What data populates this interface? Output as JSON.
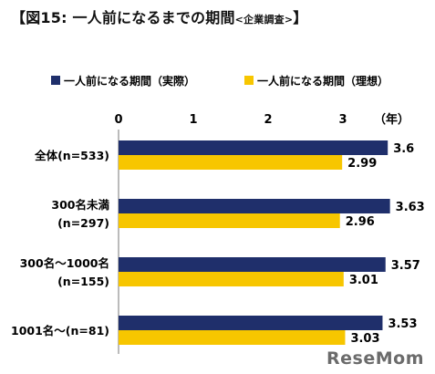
{
  "title": {
    "open": "【",
    "main": "図15:  一人前になるまでの期間",
    "sub": "<企業調査>",
    "close": "】"
  },
  "unit_label": "（年）",
  "watermark": "ReseMom",
  "colors": {
    "actual": "#1f2f6b",
    "ideal": "#f7c600",
    "axis": "#777777"
  },
  "chart_data": {
    "type": "bar",
    "orientation": "horizontal",
    "categories": [
      [
        "全体(n=533)"
      ],
      [
        "300名未満",
        "(n=297)"
      ],
      [
        "300名～1000名",
        "(n=155)"
      ],
      [
        "1001名～(n=81)"
      ]
    ],
    "series": [
      {
        "name": "一人前になる期間（実際）",
        "values": [
          3.6,
          3.63,
          3.57,
          3.53
        ],
        "labels": [
          "3.6",
          "3.63",
          "3.57",
          "3.53"
        ]
      },
      {
        "name": "一人前になる期間（理想）",
        "values": [
          2.99,
          2.96,
          3.01,
          3.03
        ],
        "labels": [
          "2.99",
          "2.96",
          "3.01",
          "3.03"
        ]
      }
    ],
    "xlim": [
      0,
      3.6
    ],
    "xticks": [
      "0",
      "1",
      "2",
      "3"
    ],
    "xtick_values": [
      0,
      1,
      2,
      3
    ],
    "legend_position": "top",
    "grid": false
  }
}
